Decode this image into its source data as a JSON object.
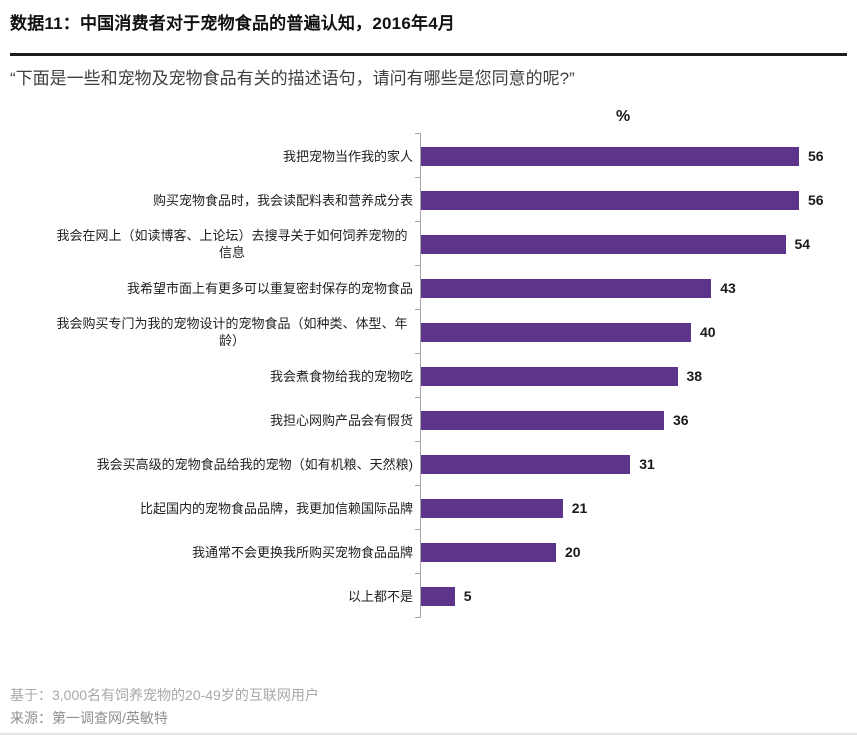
{
  "header": {
    "title": "数据11：中国消费者对于宠物食品的普遍认知，2016年4月",
    "question": "“下面是一些和宠物及宠物食品有关的描述语句，请问有哪些是您同意的呢?”"
  },
  "chart_data": {
    "type": "bar",
    "orientation": "horizontal",
    "unit_label": "%",
    "categories": [
      "我把宠物当作我的家人",
      "购买宠物食品时，我会读配料表和营养成分表",
      "我会在网上（如读博客、上论坛）去搜寻关于如何饲养宠物的信息",
      "我希望市面上有更多可以重复密封保存的宠物食品",
      "我会购买专门为我的宠物设计的宠物食品（如种类、体型、年龄）",
      "我会煮食物给我的宠物吃",
      "我担心网购产品会有假货",
      "我会买高级的宠物食品给我的宠物（如有机粮、天然粮)",
      "比起国内的宠物食品品牌，我更加信赖国际品牌",
      "我通常不会更换我所购买宠物食品品牌",
      "以上都不是"
    ],
    "values": [
      56,
      56,
      54,
      43,
      40,
      38,
      36,
      31,
      21,
      20,
      5
    ],
    "xlim": [
      0,
      60
    ],
    "grid": false,
    "legend": false,
    "value_labels": "end-of-bar",
    "bar_color": "#5c3489",
    "axis_color": "#a6a6a6"
  },
  "footer": {
    "base": "基于：3,000名有饲养宠物的20-49岁的互联网用户",
    "source": "来源：第一调查网/英敏特"
  }
}
